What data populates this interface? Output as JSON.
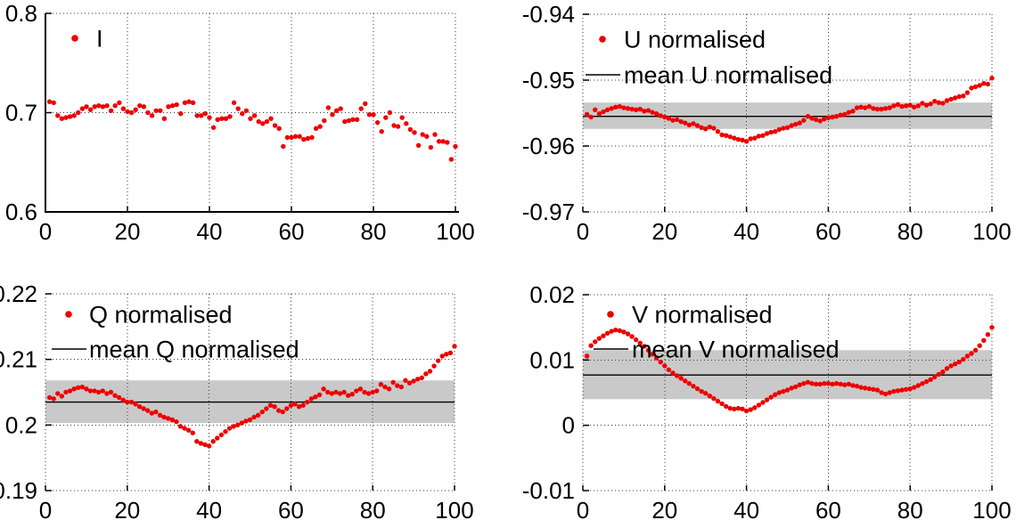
{
  "figure": {
    "background": "#ffffff",
    "dot_color": "#ee0000",
    "band_color": "#c9c9c9",
    "mean_line_color": "#000000",
    "grid_color": "#3a3a3a",
    "axis_color": "#000000"
  },
  "chart_data": [
    {
      "id": "I",
      "type": "scatter",
      "legend": [
        {
          "label": "I",
          "marker": "dot"
        }
      ],
      "xlim": [
        0,
        100
      ],
      "ylim": [
        0.6,
        0.8
      ],
      "xtick_values": [
        0,
        20,
        40,
        60,
        80,
        100
      ],
      "xtick_labels": [
        "0",
        "20",
        "40",
        "60",
        "80",
        "100"
      ],
      "ytick_values": [
        0.6,
        0.7,
        0.8
      ],
      "ytick_labels": [
        "0.6",
        "0.7",
        "0.8"
      ],
      "x_range": [
        1,
        100
      ],
      "mean": null,
      "band": null,
      "y": [
        0.711,
        0.71,
        0.697,
        0.694,
        0.695,
        0.696,
        0.697,
        0.7,
        0.704,
        0.706,
        0.703,
        0.706,
        0.707,
        0.706,
        0.707,
        0.702,
        0.707,
        0.71,
        0.704,
        0.701,
        0.7,
        0.703,
        0.707,
        0.706,
        0.7,
        0.697,
        0.702,
        0.702,
        0.694,
        0.706,
        0.707,
        0.708,
        0.699,
        0.71,
        0.711,
        0.71,
        0.697,
        0.697,
        0.699,
        0.695,
        0.685,
        0.693,
        0.694,
        0.694,
        0.696,
        0.71,
        0.704,
        0.699,
        0.702,
        0.694,
        0.697,
        0.691,
        0.689,
        0.691,
        0.694,
        0.687,
        0.684,
        0.666,
        0.675,
        0.675,
        0.676,
        0.676,
        0.673,
        0.674,
        0.675,
        0.684,
        0.686,
        0.692,
        0.705,
        0.698,
        0.702,
        0.704,
        0.691,
        0.692,
        0.693,
        0.693,
        0.704,
        0.709,
        0.698,
        0.698,
        0.69,
        0.681,
        0.695,
        0.7,
        0.687,
        0.686,
        0.695,
        0.689,
        0.683,
        0.68,
        0.667,
        0.678,
        0.676,
        0.665,
        0.678,
        0.671,
        0.671,
        0.67,
        0.653,
        0.666
      ]
    },
    {
      "id": "U-normalised",
      "type": "scatter",
      "legend": [
        {
          "label": "U normalised",
          "marker": "dot"
        },
        {
          "label": "mean U normalised",
          "marker": "line"
        }
      ],
      "xlim": [
        0,
        100
      ],
      "ylim": [
        -0.97,
        -0.94
      ],
      "xtick_values": [
        0,
        20,
        40,
        60,
        80,
        100
      ],
      "xtick_labels": [
        "0",
        "20",
        "40",
        "60",
        "80",
        "100"
      ],
      "ytick_values": [
        -0.97,
        -0.96,
        -0.95,
        -0.94
      ],
      "ytick_labels": [
        "-0.97",
        "-0.96",
        "-0.95",
        "-0.94"
      ],
      "x_range": [
        1,
        100
      ],
      "mean": -0.9555,
      "band": [
        -0.9574,
        -0.9534
      ],
      "y": [
        -0.9552,
        -0.9556,
        -0.9545,
        -0.9551,
        -0.9548,
        -0.9545,
        -0.9543,
        -0.9541,
        -0.954,
        -0.9542,
        -0.9543,
        -0.9544,
        -0.9545,
        -0.9544,
        -0.9547,
        -0.9546,
        -0.9549,
        -0.9551,
        -0.9554,
        -0.9556,
        -0.9558,
        -0.9561,
        -0.956,
        -0.9563,
        -0.9565,
        -0.9568,
        -0.9566,
        -0.9569,
        -0.9572,
        -0.9574,
        -0.9571,
        -0.9573,
        -0.9578,
        -0.9583,
        -0.9584,
        -0.9586,
        -0.9588,
        -0.959,
        -0.9591,
        -0.9593,
        -0.9589,
        -0.9588,
        -0.9585,
        -0.9584,
        -0.9581,
        -0.9579,
        -0.9578,
        -0.9575,
        -0.9573,
        -0.9572,
        -0.9569,
        -0.9567,
        -0.9565,
        -0.9561,
        -0.9555,
        -0.9558,
        -0.956,
        -0.9562,
        -0.9559,
        -0.9557,
        -0.9556,
        -0.9555,
        -0.9553,
        -0.9552,
        -0.9549,
        -0.9547,
        -0.9542,
        -0.9541,
        -0.9542,
        -0.954,
        -0.9543,
        -0.9544,
        -0.9544,
        -0.9543,
        -0.9542,
        -0.9539,
        -0.9537,
        -0.954,
        -0.9539,
        -0.9538,
        -0.9541,
        -0.9539,
        -0.9535,
        -0.9538,
        -0.9536,
        -0.9532,
        -0.9534,
        -0.9535,
        -0.9531,
        -0.9529,
        -0.9527,
        -0.9525,
        -0.9524,
        -0.9519,
        -0.9512,
        -0.951,
        -0.9508,
        -0.9505,
        -0.9506,
        -0.9497
      ]
    },
    {
      "id": "Q-normalised",
      "type": "scatter",
      "legend": [
        {
          "label": "Q normalised",
          "marker": "dot"
        },
        {
          "label": "mean Q normalised",
          "marker": "line"
        }
      ],
      "xlim": [
        0,
        100
      ],
      "ylim": [
        0.19,
        0.22
      ],
      "xtick_values": [
        0,
        20,
        40,
        60,
        80,
        100
      ],
      "xtick_labels": [
        "0",
        "20",
        "40",
        "60",
        "80",
        "100"
      ],
      "ytick_values": [
        0.19,
        0.2,
        0.21,
        0.22
      ],
      "ytick_labels": [
        "0.19",
        "0.2",
        "0.21",
        "0.22"
      ],
      "x_range": [
        1,
        100
      ],
      "mean": 0.2035,
      "band": [
        0.2003,
        0.2068
      ],
      "y": [
        0.2042,
        0.204,
        0.2048,
        0.2044,
        0.205,
        0.2052,
        0.2055,
        0.2057,
        0.2058,
        0.2055,
        0.2052,
        0.2052,
        0.205,
        0.2052,
        0.2048,
        0.205,
        0.2045,
        0.2042,
        0.2038,
        0.2035,
        0.2035,
        0.2032,
        0.2028,
        0.2025,
        0.2022,
        0.2018,
        0.202,
        0.2015,
        0.2012,
        0.201,
        0.2008,
        0.2005,
        0.1998,
        0.1995,
        0.1992,
        0.1988,
        0.1975,
        0.1972,
        0.197,
        0.1968,
        0.1975,
        0.198,
        0.1985,
        0.199,
        0.1995,
        0.1998,
        0.2,
        0.2003,
        0.2006,
        0.2008,
        0.2012,
        0.2015,
        0.202,
        0.2025,
        0.203,
        0.2028,
        0.2022,
        0.202,
        0.2025,
        0.203,
        0.2032,
        0.2028,
        0.203,
        0.2035,
        0.204,
        0.2043,
        0.2046,
        0.2055,
        0.205,
        0.2048,
        0.205,
        0.2048,
        0.205,
        0.2045,
        0.2047,
        0.2052,
        0.2055,
        0.205,
        0.2048,
        0.205,
        0.2052,
        0.2062,
        0.2058,
        0.2055,
        0.2065,
        0.206,
        0.2058,
        0.2068,
        0.2064,
        0.2067,
        0.207,
        0.2072,
        0.2078,
        0.2082,
        0.209,
        0.2098,
        0.2105,
        0.2108,
        0.211,
        0.212
      ]
    },
    {
      "id": "V-normalised",
      "type": "scatter",
      "legend": [
        {
          "label": "V normalised",
          "marker": "dot"
        },
        {
          "label": "mean V normalised",
          "marker": "line"
        }
      ],
      "xlim": [
        0,
        100
      ],
      "ylim": [
        -0.01,
        0.02
      ],
      "xtick_values": [
        0,
        20,
        40,
        60,
        80,
        100
      ],
      "xtick_labels": [
        "0",
        "20",
        "40",
        "60",
        "80",
        "100"
      ],
      "ytick_values": [
        -0.01,
        0,
        0.01,
        0.02
      ],
      "ytick_labels": [
        "-0.01",
        "0",
        "0.01",
        "0.02"
      ],
      "x_range": [
        1,
        100
      ],
      "mean": 0.0077,
      "band": [
        0.004,
        0.0115
      ],
      "y": [
        0.0106,
        0.0122,
        0.0128,
        0.0133,
        0.0137,
        0.0141,
        0.0144,
        0.0146,
        0.0145,
        0.0143,
        0.014,
        0.0136,
        0.0131,
        0.0126,
        0.0121,
        0.0115,
        0.0109,
        0.0103,
        0.0097,
        0.0091,
        0.0085,
        0.008,
        0.0076,
        0.0072,
        0.0068,
        0.0064,
        0.006,
        0.0056,
        0.0052,
        0.0049,
        0.0045,
        0.0041,
        0.0037,
        0.0033,
        0.0029,
        0.0026,
        0.0025,
        0.0026,
        0.0025,
        0.0022,
        0.0024,
        0.0027,
        0.0031,
        0.0035,
        0.0039,
        0.0043,
        0.0047,
        0.005,
        0.0052,
        0.0054,
        0.0057,
        0.0059,
        0.0062,
        0.0064,
        0.0066,
        0.0064,
        0.0063,
        0.0063,
        0.0064,
        0.0064,
        0.0063,
        0.0064,
        0.0063,
        0.0062,
        0.0063,
        0.0061,
        0.006,
        0.0058,
        0.0057,
        0.0056,
        0.0055,
        0.0054,
        0.005,
        0.0048,
        0.005,
        0.0052,
        0.0053,
        0.0054,
        0.0055,
        0.0056,
        0.0058,
        0.0061,
        0.0064,
        0.0067,
        0.007,
        0.0074,
        0.0078,
        0.0082,
        0.0087,
        0.0091,
        0.0094,
        0.0097,
        0.0101,
        0.0106,
        0.011,
        0.0115,
        0.0122,
        0.013,
        0.0139,
        0.015
      ]
    }
  ]
}
